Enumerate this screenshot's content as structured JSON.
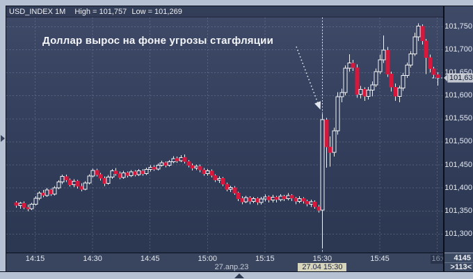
{
  "header": {
    "title": "USD_INDEX 1M",
    "high": "High = 101,757",
    "low": "Low = 101,269"
  },
  "annotation": {
    "text": "Доллар вырос на фоне угрозы стагфляции"
  },
  "price_badge": {
    "label": "101,639"
  },
  "x_axis": {
    "date_label": "27.апр.23",
    "crosshair_time": "15:30",
    "crosshair_label": "27.04 15:30",
    "ticks": [
      {
        "time": "14:15",
        "label": "14:15"
      },
      {
        "time": "14:30",
        "label": "14:30"
      },
      {
        "time": "14:45",
        "label": "14:45"
      },
      {
        "time": "15:00",
        "label": "15:00"
      },
      {
        "time": "15:15",
        "label": "15:15"
      },
      {
        "time": "15:30",
        "label": "15:30"
      },
      {
        "time": "15:45",
        "label": "15:45"
      },
      {
        "time": "16:00",
        "label": "16:0",
        "clipped": true
      }
    ]
  },
  "axis_footer": {
    "total": "4145",
    "visible": ">113<"
  },
  "colors": {
    "up": "#f2f4f7",
    "down": "#d8173c",
    "background": "#313d59",
    "grid": "#8995b0",
    "badge_bg": "#c3c7d1",
    "crosshair_label_bg": "#d8d5bd"
  },
  "chart_data": {
    "type": "candlestick",
    "title": "USD_INDEX 1M",
    "instrument": "USD_INDEX",
    "interval": "1M",
    "high": 101757,
    "low": 101269,
    "last": 101639,
    "ylim": [
      101260,
      101770
    ],
    "y_ticks": [
      101750,
      101700,
      101650,
      101600,
      101550,
      101500,
      101450,
      101400,
      101350,
      101300
    ],
    "y_tick_labels": [
      "101,750",
      "101,700",
      "101,650",
      "101,600",
      "101,550",
      "101,500",
      "101,450",
      "101,400",
      "101,350",
      "101,300"
    ],
    "columns": [
      "time",
      "open",
      "high",
      "low",
      "close"
    ],
    "candles": [
      [
        "14:10",
        101368,
        101372,
        101357,
        101362
      ],
      [
        "14:11",
        101362,
        101370,
        101355,
        101367
      ],
      [
        "14:12",
        101367,
        101371,
        101354,
        101358
      ],
      [
        "14:13",
        101358,
        101364,
        101350,
        101355
      ],
      [
        "14:14",
        101355,
        101368,
        101352,
        101365
      ],
      [
        "14:15",
        101365,
        101382,
        101362,
        101378
      ],
      [
        "14:16",
        101378,
        101393,
        101374,
        101389
      ],
      [
        "14:17",
        101389,
        101396,
        101380,
        101384
      ],
      [
        "14:18",
        101384,
        101400,
        101381,
        101396
      ],
      [
        "14:19",
        101396,
        101399,
        101383,
        101387
      ],
      [
        "14:20",
        101387,
        101404,
        101384,
        101400
      ],
      [
        "14:21",
        101400,
        101417,
        101397,
        101413
      ],
      [
        "14:22",
        101413,
        101429,
        101409,
        101425
      ],
      [
        "14:23",
        101425,
        101429,
        101413,
        101417
      ],
      [
        "14:24",
        101417,
        101421,
        101403,
        101407
      ],
      [
        "14:25",
        101407,
        101419,
        101402,
        101415
      ],
      [
        "14:26",
        101415,
        101418,
        101399,
        101404
      ],
      [
        "14:27",
        101404,
        101410,
        101393,
        101397
      ],
      [
        "14:28",
        101397,
        101415,
        101395,
        101411
      ],
      [
        "14:29",
        101411,
        101430,
        101408,
        101426
      ],
      [
        "14:30",
        101426,
        101442,
        101423,
        101438
      ],
      [
        "14:31",
        101438,
        101442,
        101425,
        101429
      ],
      [
        "14:32",
        101429,
        101433,
        101416,
        101421
      ],
      [
        "14:33",
        101421,
        101425,
        101404,
        101410
      ],
      [
        "14:34",
        101410,
        101428,
        101407,
        101424
      ],
      [
        "14:35",
        101424,
        101441,
        101420,
        101437
      ],
      [
        "14:36",
        101437,
        101443,
        101427,
        101431
      ],
      [
        "14:37",
        101431,
        101436,
        101419,
        101423
      ],
      [
        "14:38",
        101423,
        101437,
        101420,
        101433
      ],
      [
        "14:39",
        101433,
        101436,
        101423,
        101427
      ],
      [
        "14:40",
        101427,
        101439,
        101424,
        101435
      ],
      [
        "14:41",
        101435,
        101439,
        101425,
        101429
      ],
      [
        "14:42",
        101429,
        101441,
        101426,
        101437
      ],
      [
        "14:43",
        101437,
        101441,
        101427,
        101431
      ],
      [
        "14:44",
        101431,
        101444,
        101428,
        101440
      ],
      [
        "14:45",
        101440,
        101449,
        101436,
        101445
      ],
      [
        "14:46",
        101445,
        101449,
        101437,
        101441
      ],
      [
        "14:47",
        101441,
        101453,
        101438,
        101449
      ],
      [
        "14:48",
        101449,
        101459,
        101446,
        101455
      ],
      [
        "14:49",
        101455,
        101458,
        101445,
        101449
      ],
      [
        "14:50",
        101449,
        101461,
        101446,
        101457
      ],
      [
        "14:51",
        101457,
        101469,
        101454,
        101464
      ],
      [
        "14:52",
        101464,
        101468,
        101455,
        101459
      ],
      [
        "14:53",
        101459,
        101471,
        101456,
        101466
      ],
      [
        "14:54",
        101466,
        101473,
        101453,
        101457
      ],
      [
        "14:55",
        101457,
        101461,
        101445,
        101449
      ],
      [
        "14:56",
        101449,
        101453,
        101438,
        101443
      ],
      [
        "14:57",
        101443,
        101451,
        101439,
        101447
      ],
      [
        "14:58",
        101447,
        101451,
        101434,
        101439
      ],
      [
        "14:59",
        101439,
        101443,
        101427,
        101431
      ],
      [
        "15:00",
        101431,
        101441,
        101427,
        101437
      ],
      [
        "15:01",
        101437,
        101440,
        101423,
        101427
      ],
      [
        "15:02",
        101427,
        101430,
        101413,
        101417
      ],
      [
        "15:03",
        101417,
        101425,
        101411,
        101421
      ],
      [
        "15:04",
        101421,
        101424,
        101404,
        101408
      ],
      [
        "15:05",
        101408,
        101412,
        101393,
        101397
      ],
      [
        "15:06",
        101397,
        101405,
        101391,
        101401
      ],
      [
        "15:07",
        101401,
        101404,
        101385,
        101389
      ],
      [
        "15:08",
        101389,
        101392,
        101372,
        101377
      ],
      [
        "15:09",
        101377,
        101382,
        101365,
        101370
      ],
      [
        "15:10",
        101370,
        101383,
        101367,
        101379
      ],
      [
        "15:11",
        101379,
        101382,
        101365,
        101371
      ],
      [
        "15:12",
        101371,
        101381,
        101367,
        101377
      ],
      [
        "15:13",
        101377,
        101380,
        101363,
        101369
      ],
      [
        "15:14",
        101369,
        101381,
        101364,
        101376
      ],
      [
        "15:15",
        101376,
        101386,
        101371,
        101381
      ],
      [
        "15:16",
        101381,
        101384,
        101369,
        101374
      ],
      [
        "15:17",
        101374,
        101385,
        101369,
        101380
      ],
      [
        "15:18",
        101380,
        101383,
        101369,
        101375
      ],
      [
        "15:19",
        101375,
        101387,
        101371,
        101382
      ],
      [
        "15:20",
        101382,
        101385,
        101372,
        101377
      ],
      [
        "15:21",
        101377,
        101389,
        101373,
        101384
      ],
      [
        "15:22",
        101384,
        101387,
        101372,
        101378
      ],
      [
        "15:23",
        101378,
        101381,
        101365,
        101371
      ],
      [
        "15:24",
        101371,
        101382,
        101367,
        101377
      ],
      [
        "15:25",
        101377,
        101380,
        101366,
        101371
      ],
      [
        "15:26",
        101371,
        101375,
        101360,
        101365
      ],
      [
        "15:27",
        101365,
        101375,
        101359,
        101370
      ],
      [
        "15:28",
        101370,
        101373,
        101355,
        101359
      ],
      [
        "15:29",
        101359,
        101363,
        101347,
        101352
      ],
      [
        "15:30",
        101352,
        101560,
        101269,
        101548
      ],
      [
        "15:31",
        101548,
        101552,
        101444,
        101489
      ],
      [
        "15:32",
        101489,
        101512,
        101446,
        101477
      ],
      [
        "15:33",
        101477,
        101531,
        101468,
        101524
      ],
      [
        "15:34",
        101524,
        101608,
        101516,
        101598
      ],
      [
        "15:35",
        101598,
        101615,
        101586,
        101607
      ],
      [
        "15:36",
        101607,
        101666,
        101601,
        101660
      ],
      [
        "15:37",
        101660,
        101690,
        101652,
        101671
      ],
      [
        "15:38",
        101671,
        101678,
        101654,
        101661
      ],
      [
        "15:39",
        101661,
        101668,
        101596,
        101603
      ],
      [
        "15:40",
        101603,
        101621,
        101594,
        101614
      ],
      [
        "15:41",
        101614,
        101618,
        101589,
        101599
      ],
      [
        "15:42",
        101599,
        101619,
        101592,
        101612
      ],
      [
        "15:43",
        101612,
        101631,
        101599,
        101624
      ],
      [
        "15:44",
        101624,
        101659,
        101619,
        101652
      ],
      [
        "15:45",
        101652,
        101689,
        101647,
        101678
      ],
      [
        "15:46",
        101678,
        101731,
        101671,
        101699
      ],
      [
        "15:47",
        101699,
        101706,
        101641,
        101647
      ],
      [
        "15:48",
        101647,
        101652,
        101609,
        101619
      ],
      [
        "15:49",
        101619,
        101627,
        101589,
        101599
      ],
      [
        "15:50",
        101599,
        101622,
        101586,
        101617
      ],
      [
        "15:51",
        101617,
        101649,
        101611,
        101644
      ],
      [
        "15:52",
        101644,
        101672,
        101639,
        101667
      ],
      [
        "15:53",
        101667,
        101697,
        101661,
        101691
      ],
      [
        "15:54",
        101691,
        101737,
        101686,
        101728
      ],
      [
        "15:55",
        101728,
        101757,
        101719,
        101751
      ],
      [
        "15:56",
        101751,
        101755,
        101711,
        101719
      ],
      [
        "15:57",
        101719,
        101723,
        101647,
        101683
      ],
      [
        "15:58",
        101683,
        101689,
        101651,
        101659
      ],
      [
        "15:59",
        101659,
        101663,
        101638,
        101646
      ],
      [
        "16:00",
        101646,
        101651,
        101622,
        101639
      ]
    ]
  }
}
